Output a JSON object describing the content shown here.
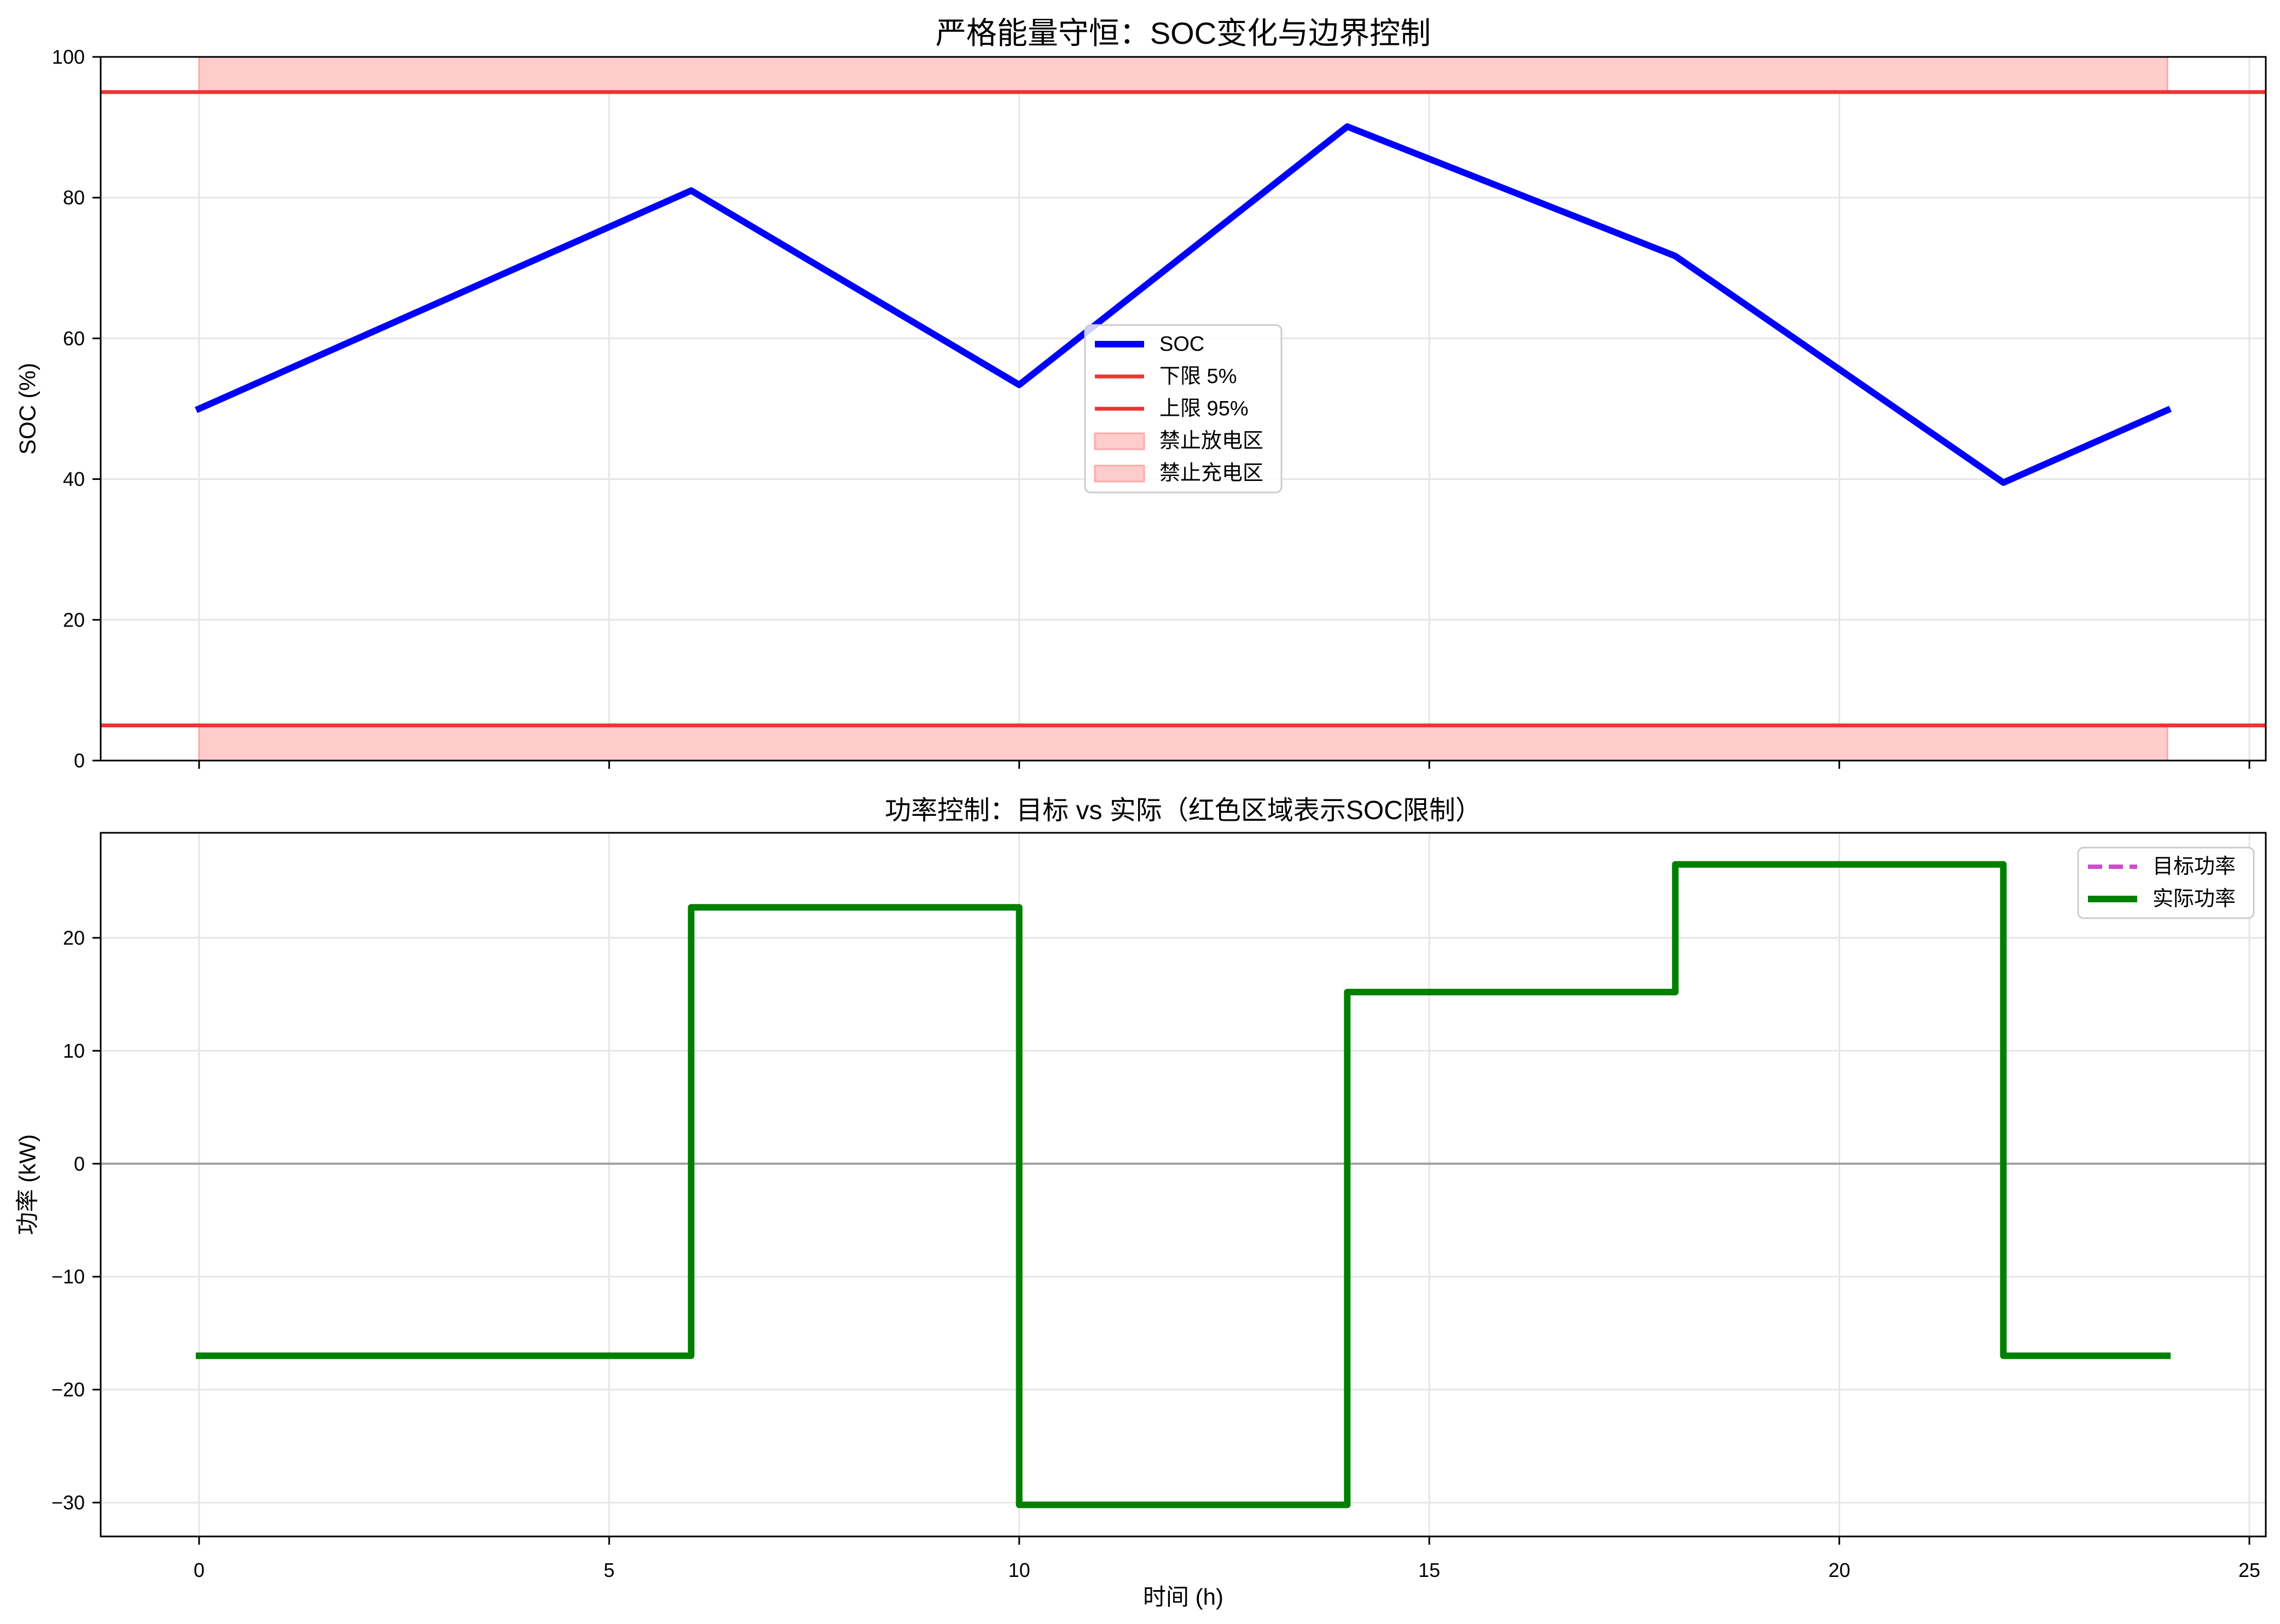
{
  "chart_data": [
    {
      "type": "line",
      "title": "严格能量守恒：SOC变化与边界控制",
      "ylabel": "SOC (%)",
      "xlim": [
        -1.2,
        25.2
      ],
      "ylim": [
        0,
        100
      ],
      "xticks": [
        0,
        5,
        10,
        15,
        20,
        25
      ],
      "yticks": [
        0,
        20,
        40,
        60,
        80,
        100
      ],
      "ytick_labels": [
        "0",
        "20",
        "40",
        "60",
        "80",
        "100"
      ],
      "grid": true,
      "legend": "center",
      "series": [
        {
          "name": "SOC",
          "color": "#0000ff",
          "linestyle": "solid",
          "x": [
            0,
            6,
            10,
            14,
            18,
            22,
            24
          ],
          "y": [
            50,
            81.0,
            53.4,
            90.1,
            71.7,
            39.5,
            49.8
          ]
        }
      ],
      "hlines": [
        {
          "name": "下限 5%",
          "y": 5,
          "color": "#ee3333"
        },
        {
          "name": "上限 95%",
          "y": 95,
          "color": "#ee3333"
        }
      ],
      "bands": [
        {
          "name": "禁止放电区",
          "x": [
            0,
            24
          ],
          "y": [
            0,
            5
          ],
          "color": "#ffcccc",
          "edgecolor": "#ffa8a8"
        },
        {
          "name": "禁止充电区",
          "x": [
            0,
            24
          ],
          "y": [
            95,
            100
          ],
          "color": "#ffcccc",
          "edgecolor": "#ffa8a8"
        }
      ]
    },
    {
      "type": "line",
      "title": "功率控制：目标 vs 实际（红色区域表示SOC限制）",
      "xlabel": "时间 (h)",
      "ylabel": "功率 (kW)",
      "xlim": [
        -1.2,
        25.2
      ],
      "ylim": [
        -33.0,
        29.3
      ],
      "xticks": [
        0,
        5,
        10,
        15,
        20,
        25
      ],
      "xtick_labels": [
        "0",
        "5",
        "10",
        "15",
        "20",
        "25"
      ],
      "yticks": [
        -30,
        -20,
        -10,
        0,
        10,
        20
      ],
      "ytick_labels": [
        "−30",
        "−20",
        "−10",
        "0",
        "10",
        "20"
      ],
      "grid": true,
      "legend": "upper right",
      "series": [
        {
          "name": "目标功率",
          "color": "#cc4dcc",
          "linestyle": "dashed",
          "x": [
            0,
            6,
            6,
            10,
            10,
            14,
            14,
            18,
            18,
            22,
            22,
            24
          ],
          "y": [
            -17.0,
            -17.0,
            22.7,
            22.7,
            -30.2,
            -30.2,
            15.2,
            15.2,
            26.5,
            26.5,
            -17.0,
            -17.0
          ]
        },
        {
          "name": "实际功率",
          "color": "#008000",
          "linestyle": "solid",
          "x": [
            0,
            6,
            6,
            10,
            10,
            14,
            14,
            18,
            18,
            22,
            22,
            24
          ],
          "y": [
            -17.0,
            -17.0,
            22.7,
            22.7,
            -30.2,
            -30.2,
            15.2,
            15.2,
            26.5,
            26.5,
            -17.0,
            -17.0
          ]
        }
      ],
      "hlines": [
        {
          "y": 0,
          "color": "#a0a0a0"
        }
      ]
    }
  ]
}
